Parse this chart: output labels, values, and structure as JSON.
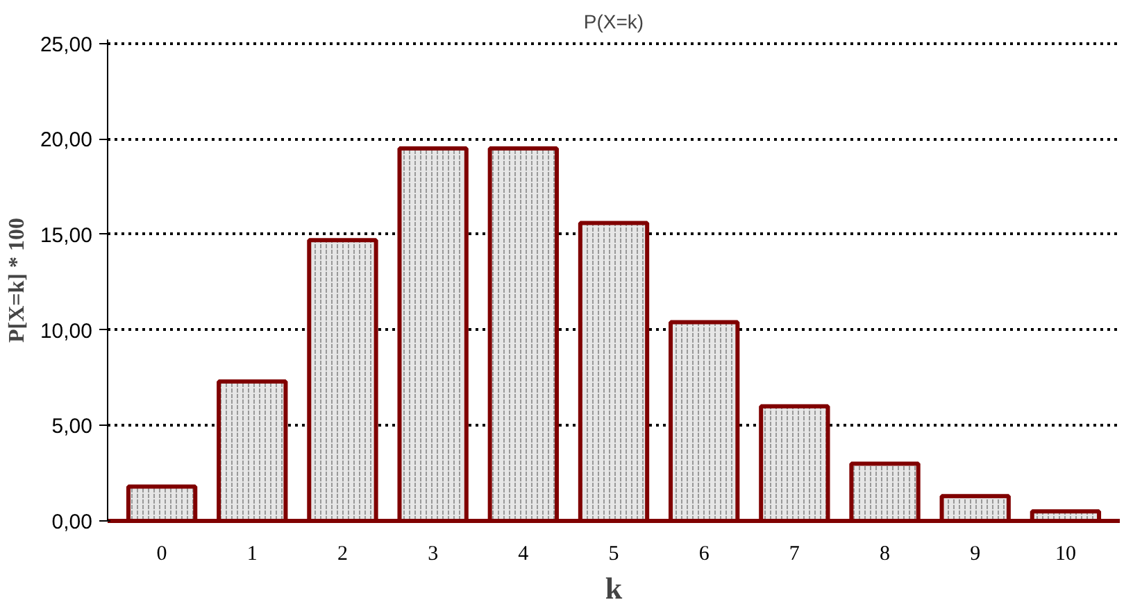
{
  "chart_data": {
    "type": "bar",
    "title": "P(X=k)",
    "xlabel": "k",
    "ylabel": "P[X=k] * 100",
    "categories": [
      "0",
      "1",
      "2",
      "3",
      "4",
      "5",
      "6",
      "7",
      "8",
      "9",
      "10"
    ],
    "values": [
      1.8,
      7.3,
      14.7,
      19.5,
      19.5,
      15.6,
      10.4,
      6.0,
      3.0,
      1.3,
      0.5
    ],
    "color": "#e6e6e6",
    "ylim": [
      0,
      25
    ],
    "yticks": [
      {
        "value": 0,
        "label": "0,00"
      },
      {
        "value": 5,
        "label": "5,00"
      },
      {
        "value": 10,
        "label": "10,00"
      },
      {
        "value": 15,
        "label": "15,00"
      },
      {
        "value": 20,
        "label": "20,00"
      },
      {
        "value": 25,
        "label": "25,00"
      }
    ],
    "grid": "y"
  }
}
